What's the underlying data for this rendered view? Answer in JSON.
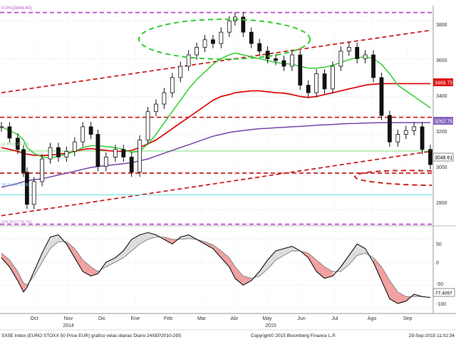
{
  "chart_data": {
    "type": "candlestick",
    "price_axis": {
      "ticks": [
        "3800",
        "3600",
        "3400",
        "3200",
        "3000",
        "2800"
      ],
      "ylim": [
        2720,
        3880
      ]
    },
    "oscillator_axis": {
      "ticks": [
        "50",
        "0",
        "-50",
        "-100"
      ],
      "ylim": [
        -112,
        75
      ]
    },
    "months": [
      "Oct",
      "Nov",
      "Dic",
      "Ene",
      "Feb",
      "Mar",
      "Abr",
      "May",
      "Jun",
      "Jul",
      "Ago",
      "Sep"
    ],
    "year_labels": [
      "2014",
      "2015"
    ],
    "labels": {
      "top_left": "0.0%(3844.40)",
      "ma_red": "3468.75",
      "ma_purple": "3262.75",
      "last_price": "3048.61",
      "osc_last": "-77.4097",
      "fib_1": "61.8%(3111.53)",
      "fib_2": "38.2%(2879.68)",
      "fib_3": "100.0%(2724.99)"
    },
    "price_series": {
      "x": [
        "2014-09-24",
        "2014-10-01",
        "2014-10-08",
        "2014-10-13",
        "2014-10-16",
        "2014-10-22",
        "2014-10-29",
        "2014-11-05",
        "2014-11-12",
        "2014-11-19",
        "2014-11-26",
        "2014-12-03",
        "2014-12-10",
        "2014-12-16",
        "2014-12-23",
        "2014-12-31",
        "2015-01-07",
        "2015-01-14",
        "2015-01-21",
        "2015-01-28",
        "2015-02-04",
        "2015-02-11",
        "2015-02-18",
        "2015-02-25",
        "2015-03-04",
        "2015-03-11",
        "2015-03-18",
        "2015-03-25",
        "2015-04-01",
        "2015-04-08",
        "2015-04-13",
        "2015-04-20",
        "2015-04-27",
        "2015-05-04",
        "2015-05-11",
        "2015-05-18",
        "2015-05-25",
        "2015-06-01",
        "2015-06-08",
        "2015-06-15",
        "2015-06-22",
        "2015-06-29",
        "2015-07-06",
        "2015-07-13",
        "2015-07-20",
        "2015-07-27",
        "2015-08-03",
        "2015-08-10",
        "2015-08-17",
        "2015-08-24",
        "2015-08-31",
        "2015-09-07",
        "2015-09-14",
        "2015-09-21",
        "2015-09-28"
      ],
      "close": [
        3240,
        3180,
        3120,
        3000,
        2830,
        2950,
        3070,
        3130,
        3080,
        3110,
        3160,
        3240,
        3200,
        3030,
        3080,
        3120,
        3080,
        3000,
        3170,
        3320,
        3360,
        3420,
        3500,
        3560,
        3620,
        3660,
        3700,
        3680,
        3740,
        3800,
        3820,
        3740,
        3680,
        3640,
        3600,
        3590,
        3560,
        3620,
        3460,
        3420,
        3520,
        3440,
        3560,
        3640,
        3660,
        3600,
        3620,
        3500,
        3300,
        3160,
        3200,
        3220,
        3240,
        3120,
        3040
      ]
    },
    "moving_averages": {
      "green_50d": [
        3240,
        3220,
        3200,
        3170,
        3130,
        3100,
        3080,
        3075,
        3085,
        3095,
        3110,
        3130,
        3140,
        3140,
        3135,
        3130,
        3120,
        3105,
        3110,
        3150,
        3200,
        3260,
        3320,
        3380,
        3440,
        3490,
        3530,
        3570,
        3600,
        3620,
        3630,
        3620,
        3610,
        3600,
        3590,
        3580,
        3575,
        3570,
        3560,
        3550,
        3550,
        3555,
        3565,
        3580,
        3595,
        3605,
        3610,
        3600,
        3570,
        3520,
        3460,
        3430,
        3400,
        3370,
        3340
      ],
      "red_100d": [
        3130,
        3120,
        3110,
        3100,
        3095,
        3090,
        3088,
        3090,
        3095,
        3100,
        3110,
        3120,
        3125,
        3120,
        3115,
        3110,
        3110,
        3115,
        3130,
        3150,
        3170,
        3200,
        3230,
        3260,
        3290,
        3320,
        3350,
        3380,
        3400,
        3410,
        3420,
        3425,
        3430,
        3430,
        3425,
        3420,
        3418,
        3410,
        3400,
        3395,
        3400,
        3410,
        3420,
        3430,
        3440,
        3450,
        3460,
        3465,
        3468,
        3468,
        3468,
        3468,
        3468,
        3468,
        3468
      ],
      "purple_200d": [
        2920,
        2930,
        2940,
        2950,
        2955,
        2960,
        2965,
        2975,
        2985,
        2995,
        3005,
        3015,
        3025,
        3030,
        3035,
        3040,
        3045,
        3050,
        3060,
        3070,
        3085,
        3100,
        3115,
        3130,
        3145,
        3160,
        3175,
        3190,
        3200,
        3210,
        3215,
        3220,
        3225,
        3230,
        3232,
        3235,
        3237,
        3240,
        3242,
        3245,
        3248,
        3250,
        3252,
        3255,
        3257,
        3258,
        3260,
        3261,
        3262,
        3262,
        3262,
        3262,
        3262,
        3262,
        3262
      ]
    },
    "oscillator": {
      "black": [
        10,
        -10,
        -40,
        -65,
        -55,
        -20,
        20,
        55,
        60,
        40,
        10,
        -20,
        -30,
        -25,
        0,
        10,
        25,
        50,
        60,
        65,
        60,
        50,
        40,
        55,
        60,
        50,
        40,
        30,
        10,
        -10,
        -35,
        -50,
        -40,
        -20,
        5,
        25,
        30,
        35,
        25,
        10,
        -20,
        -35,
        -30,
        -10,
        15,
        40,
        30,
        0,
        -40,
        -80,
        -90,
        -85,
        -70,
        -75,
        -77
      ],
      "gray": [
        20,
        5,
        -20,
        -45,
        -50,
        -30,
        0,
        30,
        45,
        45,
        30,
        5,
        -10,
        -20,
        -10,
        0,
        10,
        25,
        40,
        50,
        55,
        55,
        50,
        50,
        52,
        50,
        45,
        38,
        25,
        10,
        -10,
        -30,
        -35,
        -30,
        -15,
        5,
        15,
        25,
        25,
        20,
        5,
        -10,
        -20,
        -20,
        -5,
        15,
        20,
        10,
        -10,
        -40,
        -65,
        -75,
        -75,
        -75,
        -77
      ]
    },
    "trendlines": [
      {
        "style": "dashed",
        "color": "#cc2020",
        "from": [
          "2014-09-24",
          3420
        ],
        "to": [
          "2015-09-28",
          3750
        ]
      },
      {
        "style": "dashed",
        "color": "#cc2020",
        "from": [
          "2014-09-24",
          2770
        ],
        "to": [
          "2015-09-28",
          3110
        ]
      },
      {
        "style": "dashed",
        "color": "#cc2020",
        "level": 3290
      },
      {
        "style": "dashed",
        "color": "#cc2020",
        "level": 2995
      },
      {
        "style": "dashed",
        "color": "#bb55cc",
        "level": 3844
      },
      {
        "style": "dashed",
        "color": "#bb55cc",
        "level": 2725
      },
      {
        "style": "solid",
        "color": "#66dd66",
        "level": 3112
      },
      {
        "style": "solid",
        "color": "#55dddd",
        "level": 2880
      }
    ],
    "grid": true
  },
  "footer": {
    "left": "SX5E Index (EURO STOXX 50 Price EUR) grafico velas diarias  Diario 24SEP2010-29S",
    "center": "Copyright© 2015 Bloomberg Finance L.P.",
    "right": "29-Sep-2015 11:02:34"
  },
  "colors": {
    "green_ma": "#33cc33",
    "red_ma": "#dd1111",
    "purple_ma": "#7744aa",
    "trend": "#cc2020",
    "fill_up": "#dddddd",
    "fill_down": "#f2a0a0"
  }
}
